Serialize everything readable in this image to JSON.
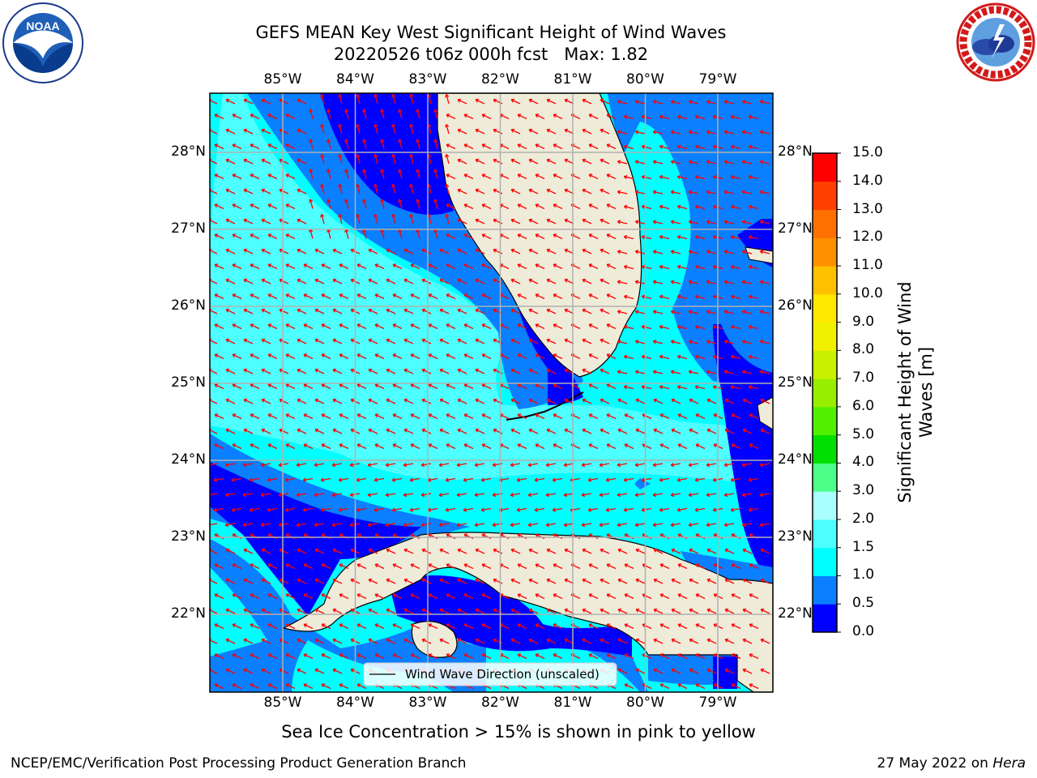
{
  "title": {
    "line1": "GEFS MEAN Key West Significant Height of Wind Waves",
    "line2": "20220526 t06z 000h fcst   Max: 1.82"
  },
  "logos": {
    "left": {
      "icon": "noaa-logo",
      "text": "NOAA",
      "ring_text": "NATIONAL OCEANIC AND ATMOSPHERIC ADMINISTRATION · U.S. DEPARTMENT OF COMMERCE"
    },
    "right": {
      "icon": "national-weather-service-logo",
      "ring_text": "NATIONAL WEATHER SERVICE"
    }
  },
  "axes": {
    "lon_labels": [
      "85°W",
      "84°W",
      "83°W",
      "82°W",
      "81°W",
      "80°W",
      "79°W"
    ],
    "lat_labels": [
      "28°N",
      "27°N",
      "26°N",
      "25°N",
      "24°N",
      "23°N",
      "22°N"
    ],
    "lon_range": [
      -86,
      -78.3
    ],
    "lat_range": [
      21.05,
      28.75
    ]
  },
  "legend": {
    "label": "Wind Wave Direction (unscaled)",
    "line_color": "#000000"
  },
  "colorbar": {
    "label": "Significant Height of Wind Waves [m]",
    "label_line1": "Significant Height of Wind",
    "label_line2": "Waves [m]",
    "ticks": [
      "15.0",
      "14.0",
      "13.0",
      "12.0",
      "11.0",
      "10.0",
      "9.0",
      "8.0",
      "7.0",
      "6.0",
      "5.0",
      "4.0",
      "3.0",
      "2.0",
      "1.5",
      "1.0",
      "0.5",
      "0.0"
    ],
    "colors_bottom_to_top": [
      "#0000ff",
      "#0a7fff",
      "#00ffff",
      "#4dffff",
      "#aaffff",
      "#4dff88",
      "#00e000",
      "#50f000",
      "#98ee00",
      "#c8f000",
      "#f0f000",
      "#ffe800",
      "#ffc000",
      "#ff9000",
      "#ff7000",
      "#ff4000",
      "#ff0000"
    ]
  },
  "map_colors": {
    "land": "#efebd9",
    "coast": "#000000",
    "grid": "#b0b0b0",
    "arrow": "#ff0000",
    "level_0_0_5": "#0000ff",
    "level_0_5_1_0": "#0a7fff",
    "level_1_0_1_5": "#00ffff",
    "level_1_5_2_0": "#4dffff"
  },
  "map_data": {
    "type": "contour-map",
    "variable": "Significant Height of Wind Waves",
    "units": "m",
    "max": 1.82,
    "arrow_field": "Wind Wave Direction (unscaled)"
  },
  "subtitle": "Sea Ice Concentration > 15% is shown in pink to yellow",
  "footer": {
    "left": "NCEP/EMC/Verification Post Processing Product Generation Branch",
    "right_date": "27 May 2022 on ",
    "right_machine": "Hera"
  }
}
